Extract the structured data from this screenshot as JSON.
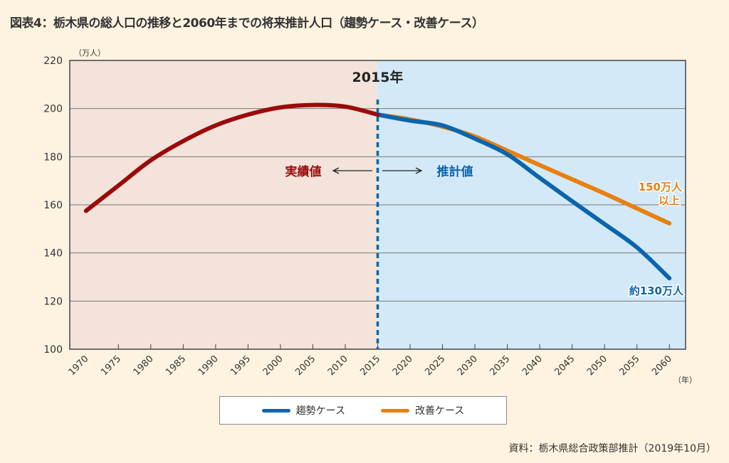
{
  "title": "図表4：栃木県の総人口の推移と2060年までの将来推計人口（趨勢ケース・改善ケース）",
  "source": "資料：栃木県総合政策部推計（2019年10月）",
  "colors": {
    "background": "#fdf3e0",
    "actual_region": "#f3e3da",
    "projection_region": "#d3e9f7",
    "actual": "#9b0a0a",
    "trend": "#0a65ad",
    "improved": "#e8800f"
  },
  "chart_data": {
    "type": "line",
    "yunit": "（万人）",
    "xunit": "（年）",
    "ylim": [
      100,
      220
    ],
    "yticks": [
      100,
      120,
      140,
      160,
      180,
      200,
      220
    ],
    "xlim": [
      1967.5,
      2062.5
    ],
    "xticks": [
      1970,
      1975,
      1980,
      1985,
      1990,
      1995,
      2000,
      2005,
      2010,
      2015,
      2020,
      2025,
      2030,
      2035,
      2040,
      2045,
      2050,
      2055,
      2060
    ],
    "grid": true,
    "divider_year": 2015,
    "divider_label": "2015年",
    "actual_label": "実績値",
    "projection_label": "推計値",
    "series": [
      {
        "key": "actual",
        "x": [
          1970,
          1975,
          1980,
          1985,
          1990,
          1995,
          2000,
          2005,
          2010,
          2015
        ],
        "y": [
          157.5,
          168,
          178.5,
          186.5,
          193,
          197.5,
          200.5,
          201.5,
          200.8,
          197.5
        ]
      },
      {
        "key": "trend",
        "name": "趨勢ケース",
        "x": [
          2015,
          2020,
          2025,
          2030,
          2035,
          2040,
          2045,
          2050,
          2055,
          2060
        ],
        "y": [
          197.5,
          195,
          193,
          187.5,
          181,
          171.2,
          161.5,
          152,
          142.3,
          129.5
        ],
        "end_label": "約130万人"
      },
      {
        "key": "improved",
        "name": "改善ケース",
        "x": [
          2015,
          2020,
          2025,
          2030,
          2035,
          2040,
          2045,
          2050,
          2055,
          2060
        ],
        "y": [
          197.5,
          195.5,
          192.5,
          188.4,
          182.5,
          176.5,
          170.6,
          164.7,
          158.5,
          152.3
        ],
        "end_label": [
          "150万人",
          "以上"
        ]
      }
    ],
    "legend": "bottom-center"
  }
}
